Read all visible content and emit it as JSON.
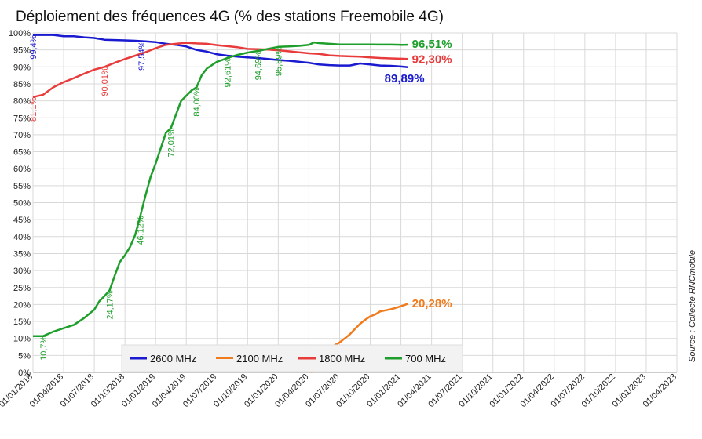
{
  "chart_data": {
    "type": "line",
    "title": "Déploiement des fréquences 4G (% des stations Freemobile 4G)",
    "source": "Source : Collecte RNCmobile",
    "ylim": [
      0,
      100
    ],
    "y_ticks": [
      "0%",
      "5%",
      "10%",
      "15%",
      "20%",
      "25%",
      "30%",
      "35%",
      "40%",
      "45%",
      "50%",
      "55%",
      "60%",
      "65%",
      "70%",
      "75%",
      "80%",
      "85%",
      "90%",
      "95%",
      "100%"
    ],
    "x_ticks": [
      "01/01/2018",
      "01/04/2018",
      "01/07/2018",
      "01/10/2018",
      "01/01/2019",
      "01/04/2019",
      "01/07/2019",
      "01/10/2019",
      "01/01/2020",
      "01/04/2020",
      "01/07/2020",
      "01/10/2020",
      "01/01/2021",
      "01/04/2021",
      "01/07/2021",
      "01/10/2021",
      "01/01/2022",
      "01/04/2022",
      "01/07/2022",
      "01/10/2022",
      "01/01/2023",
      "01/04/2023"
    ],
    "grid": true,
    "legend_position": "bottom",
    "series": [
      {
        "name": "2600 MHz",
        "color": "#1a1ad0",
        "points": [
          [
            0,
            99.4
          ],
          [
            2,
            99.4
          ],
          [
            3,
            99.0
          ],
          [
            4,
            99.0
          ],
          [
            5,
            98.7
          ],
          [
            6,
            98.5
          ],
          [
            7,
            98.0
          ],
          [
            8,
            97.9
          ],
          [
            9,
            97.8
          ],
          [
            10,
            97.7
          ],
          [
            11,
            97.5
          ],
          [
            12,
            97.3
          ],
          [
            13,
            96.8
          ],
          [
            14,
            96.5
          ],
          [
            15,
            96.0
          ],
          [
            16,
            95.0
          ],
          [
            17,
            94.5
          ],
          [
            18,
            93.7
          ],
          [
            19,
            93.3
          ],
          [
            20,
            93.0
          ],
          [
            21,
            92.8
          ],
          [
            22,
            92.6
          ],
          [
            23,
            92.3
          ],
          [
            24,
            92.0
          ],
          [
            25,
            91.8
          ],
          [
            26,
            91.5
          ],
          [
            27,
            91.2
          ],
          [
            28,
            90.7
          ],
          [
            29,
            90.5
          ],
          [
            30,
            90.4
          ],
          [
            31,
            90.4
          ],
          [
            32,
            91.0
          ],
          [
            33,
            90.7
          ],
          [
            34,
            90.4
          ],
          [
            35,
            90.3
          ],
          [
            36,
            90.1
          ],
          [
            36.7,
            89.89
          ]
        ],
        "annotations": [
          {
            "x": 0,
            "y": 99.4,
            "label": "99,4%"
          },
          {
            "x": 10.6,
            "y": 97.54,
            "label": "97,54%"
          }
        ],
        "end_label": "89,89%"
      },
      {
        "name": "2100 MHz",
        "color": "#f07b1c",
        "points": [
          [
            27.2,
            0
          ],
          [
            27.5,
            1
          ],
          [
            28.0,
            4.5
          ],
          [
            28.5,
            6
          ],
          [
            29.0,
            7
          ],
          [
            29.5,
            8
          ],
          [
            30.0,
            8.8
          ],
          [
            30.5,
            10
          ],
          [
            31.0,
            11.2
          ],
          [
            31.5,
            12.8
          ],
          [
            32.0,
            14.3
          ],
          [
            32.5,
            15.5
          ],
          [
            33.0,
            16.5
          ],
          [
            33.5,
            17.1
          ],
          [
            34.0,
            18.0
          ],
          [
            34.5,
            18.3
          ],
          [
            35.0,
            18.6
          ],
          [
            35.5,
            19.0
          ],
          [
            36.0,
            19.5
          ],
          [
            36.4,
            19.9
          ],
          [
            36.7,
            20.28
          ]
        ],
        "annotations": [],
        "end_label": "20,28%"
      },
      {
        "name": "1800 MHz",
        "color": "#e83c3c",
        "points": [
          [
            0,
            81.1
          ],
          [
            1,
            81.8
          ],
          [
            2,
            84.0
          ],
          [
            3,
            85.5
          ],
          [
            4,
            86.7
          ],
          [
            5,
            88.0
          ],
          [
            6,
            89.2
          ],
          [
            7,
            90.0
          ],
          [
            8,
            91.2
          ],
          [
            9,
            92.3
          ],
          [
            10,
            93.3
          ],
          [
            11,
            94.3
          ],
          [
            12,
            95.5
          ],
          [
            13,
            96.5
          ],
          [
            14,
            96.8
          ],
          [
            15,
            97.1
          ],
          [
            16,
            96.9
          ],
          [
            17,
            96.8
          ],
          [
            18,
            96.4
          ],
          [
            19,
            96.1
          ],
          [
            20,
            95.8
          ],
          [
            21,
            95.3
          ],
          [
            22,
            95.2
          ],
          [
            23,
            95.1
          ],
          [
            24,
            94.9
          ],
          [
            25,
            94.6
          ],
          [
            26,
            94.3
          ],
          [
            27,
            94.0
          ],
          [
            28,
            93.8
          ],
          [
            29,
            93.4
          ],
          [
            30,
            93.2
          ],
          [
            31,
            93.1
          ],
          [
            32,
            93.0
          ],
          [
            33,
            92.8
          ],
          [
            34,
            92.6
          ],
          [
            35,
            92.5
          ],
          [
            36,
            92.4
          ],
          [
            36.7,
            92.3
          ]
        ],
        "annotations": [
          {
            "x": 0,
            "y": 81.1,
            "label": "81,1%"
          },
          {
            "x": 7,
            "y": 90.01,
            "label": "90,01%"
          }
        ],
        "end_label": "92,30%"
      },
      {
        "name": "700 MHz",
        "color": "#1e9e2a",
        "points": [
          [
            0,
            10.7
          ],
          [
            1,
            10.7
          ],
          [
            2,
            12.0
          ],
          [
            3,
            13.0
          ],
          [
            4,
            14.0
          ],
          [
            5,
            16.0
          ],
          [
            6,
            18.5
          ],
          [
            6.5,
            21.0
          ],
          [
            7,
            22.5
          ],
          [
            7.5,
            24.17
          ],
          [
            8,
            28.5
          ],
          [
            8.5,
            32.5
          ],
          [
            9,
            34.5
          ],
          [
            9.5,
            37.0
          ],
          [
            10,
            40.5
          ],
          [
            10.5,
            46.12
          ],
          [
            11,
            52.0
          ],
          [
            11.5,
            57.5
          ],
          [
            12,
            61.5
          ],
          [
            12.5,
            66.0
          ],
          [
            13,
            70.5
          ],
          [
            13.5,
            72.01
          ],
          [
            14,
            76.0
          ],
          [
            14.5,
            80.0
          ],
          [
            15,
            81.5
          ],
          [
            15.5,
            83.0
          ],
          [
            16,
            84.0
          ],
          [
            16.5,
            87.5
          ],
          [
            17,
            89.5
          ],
          [
            17.5,
            90.5
          ],
          [
            18,
            91.5
          ],
          [
            18.5,
            92.0
          ],
          [
            19,
            92.61
          ],
          [
            20,
            93.5
          ],
          [
            21,
            94.2
          ],
          [
            22,
            94.69
          ],
          [
            23,
            95.3
          ],
          [
            24,
            95.89
          ],
          [
            25,
            96.0
          ],
          [
            26,
            96.2
          ],
          [
            27,
            96.5
          ],
          [
            27.5,
            97.2
          ],
          [
            28,
            97.0
          ],
          [
            29,
            96.8
          ],
          [
            30,
            96.6
          ],
          [
            31,
            96.6
          ],
          [
            32,
            96.6
          ],
          [
            33,
            96.6
          ],
          [
            34,
            96.55
          ],
          [
            35,
            96.55
          ],
          [
            36,
            96.5
          ],
          [
            36.7,
            96.51
          ]
        ],
        "annotations": [
          {
            "x": 1,
            "y": 10.7,
            "label": "10,7%"
          },
          {
            "x": 7.5,
            "y": 24.17,
            "label": "24,17%"
          },
          {
            "x": 10.5,
            "y": 46.12,
            "label": "46,12%"
          },
          {
            "x": 13.5,
            "y": 72.01,
            "label": "72,01%"
          },
          {
            "x": 16,
            "y": 84.0,
            "label": "84,00%"
          },
          {
            "x": 19,
            "y": 92.61,
            "label": "92,61%"
          },
          {
            "x": 22,
            "y": 94.69,
            "label": "94,69%"
          },
          {
            "x": 24,
            "y": 95.89,
            "label": "95,89%"
          }
        ],
        "end_label": "96,51%"
      }
    ]
  }
}
